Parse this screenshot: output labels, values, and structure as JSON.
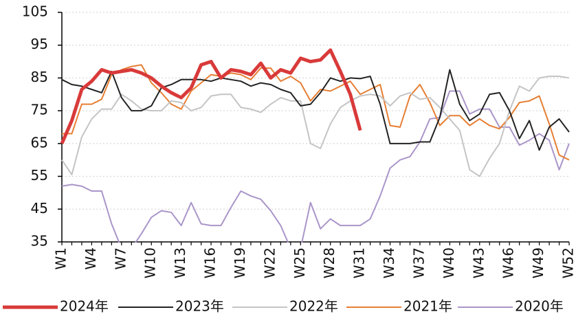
{
  "chart_data": {
    "type": "line",
    "categories": [
      "W1",
      null,
      null,
      "W4",
      null,
      null,
      "W7",
      null,
      null,
      "W10",
      null,
      null,
      "W13",
      null,
      null,
      "W16",
      null,
      null,
      "W19",
      null,
      null,
      "W22",
      null,
      null,
      "W25",
      null,
      null,
      "W28",
      null,
      null,
      "W31",
      null,
      null,
      "W34",
      null,
      null,
      "W37",
      null,
      null,
      "W40",
      null,
      null,
      "W43",
      null,
      null,
      "W46",
      null,
      null,
      "W49",
      null,
      null,
      "W52"
    ],
    "series": [
      {
        "name": "2024年",
        "color": "#d93a3a",
        "values": [
          65,
          72,
          81.5,
          84,
          87.5,
          86.5,
          87,
          87.5,
          86.5,
          85,
          82.5,
          80.5,
          79,
          82,
          89,
          90,
          85,
          87.5,
          87,
          86,
          89.5,
          85,
          87.5,
          86.5,
          91,
          90,
          90.5,
          93.5,
          87,
          80,
          69,
          null,
          null,
          null,
          null,
          null,
          null,
          null,
          null,
          null,
          null,
          null,
          null,
          null,
          null,
          null,
          null,
          null,
          null,
          null,
          null,
          null
        ]
      },
      {
        "name": "2023年",
        "color": "#222222",
        "values": [
          84.5,
          83,
          82.5,
          81.5,
          80.5,
          87,
          79,
          75,
          75,
          76.5,
          82,
          83,
          84.5,
          84.5,
          84.5,
          84,
          85,
          84.5,
          84,
          82.5,
          83.5,
          83,
          81.5,
          80.5,
          76.5,
          77,
          80.5,
          85,
          84,
          85,
          84.8,
          85.5,
          77,
          65,
          65,
          65,
          65.5,
          65.5,
          73,
          87.5,
          77,
          72,
          74,
          80,
          80.5,
          75,
          66.5,
          72,
          63,
          70,
          72.5,
          68.5
        ]
      },
      {
        "name": "2022年",
        "color": "#c4c4c4",
        "values": [
          60,
          55.5,
          67,
          72.5,
          75.5,
          75.5,
          80,
          78,
          75.5,
          75,
          75,
          78,
          77.5,
          75,
          76,
          79.5,
          80,
          80,
          76,
          75.5,
          74.5,
          77,
          79,
          78,
          78,
          65,
          63.5,
          71,
          76,
          78,
          79.5,
          80,
          79.5,
          76.5,
          79.5,
          80.5,
          78.5,
          79,
          76,
          72.5,
          69,
          57,
          55,
          60.5,
          65,
          75,
          82.5,
          81,
          85,
          85.5,
          85.5,
          85
        ]
      },
      {
        "name": "2021年",
        "color": "#e67e33",
        "values": [
          68,
          68,
          77,
          77,
          78.5,
          86,
          87.5,
          88.5,
          89,
          83.5,
          80.5,
          77,
          75.5,
          81,
          83.5,
          86,
          85.5,
          86.5,
          86,
          84.5,
          88,
          88,
          84,
          85.5,
          83.5,
          78,
          81.5,
          81,
          82.5,
          84,
          80,
          81.5,
          83,
          70.5,
          70,
          79.5,
          83,
          77.5,
          70.5,
          73.5,
          73.5,
          70.5,
          72.5,
          70.5,
          69.5,
          73,
          77.5,
          78,
          79.5,
          71,
          61.5,
          60
        ]
      },
      {
        "name": "2020年",
        "color": "#a995c9",
        "values": [
          52,
          52.5,
          52,
          50.5,
          50.5,
          40.5,
          33,
          33,
          37.5,
          42.5,
          44.5,
          44,
          40,
          47,
          40.5,
          40,
          40,
          45.5,
          50.5,
          49,
          48,
          44.5,
          40,
          33,
          33,
          47,
          39,
          42,
          40,
          40,
          40,
          42,
          49,
          57.5,
          60,
          61,
          65.5,
          72.5,
          73,
          81,
          81,
          74,
          75.5,
          75.5,
          70,
          70,
          64.5,
          66,
          68,
          66,
          57,
          65
        ]
      }
    ],
    "ylim": [
      35,
      105
    ],
    "yticks": [
      35,
      45,
      55,
      65,
      75,
      85,
      95,
      105
    ],
    "grid": true,
    "legend": "bottom"
  }
}
